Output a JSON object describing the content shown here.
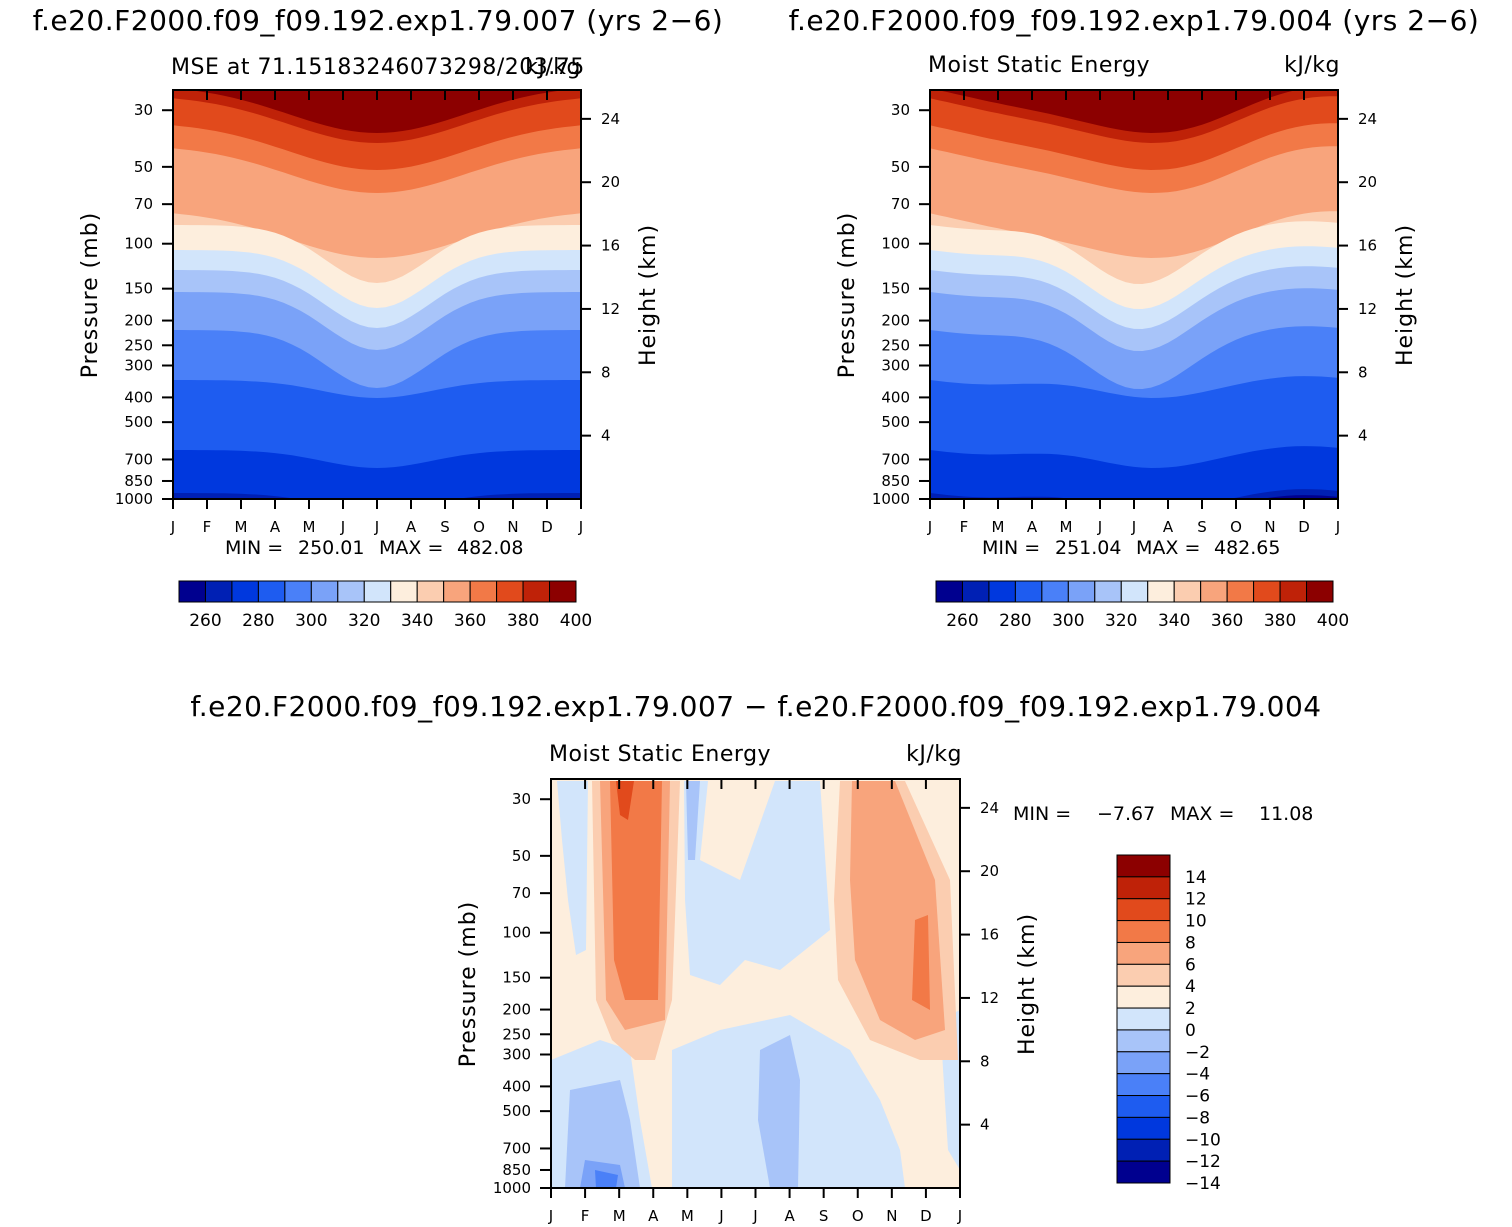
{
  "chart_data": [
    {
      "type": "heatmap",
      "case_title": "f.e20.F2000.f09_f09.192.exp1.79.007 (yrs 2−6)",
      "variable_title": "MSE at 71.15183246073298/203.75",
      "units": "kJ/kg",
      "ylabel": "Pressure (mb)",
      "ylabel_right": "Height (km)",
      "xlabel": "",
      "x_tick_labels": [
        "J",
        "F",
        "M",
        "A",
        "M",
        "J",
        "J",
        "A",
        "S",
        "O",
        "N",
        "D",
        "J"
      ],
      "pressure_ticks": [
        30,
        50,
        70,
        100,
        150,
        200,
        250,
        300,
        400,
        500,
        700,
        850,
        1000
      ],
      "height_ticks": [
        24,
        20,
        16,
        12,
        8,
        4
      ],
      "ylim": [
        1000,
        25
      ],
      "min_label": "MIN =",
      "min": "250.01",
      "max_label": "MAX =",
      "max": "482.08",
      "colorbar": {
        "labels": [
          "260",
          "280",
          "300",
          "320",
          "340",
          "360",
          "380",
          "400"
        ],
        "colors": [
          "#00008f",
          "#0020b4",
          "#0038de",
          "#1e5cf0",
          "#4a80f8",
          "#7aa2f8",
          "#a8c4f9",
          "#d2e5fb",
          "#fdeedd",
          "#fbcdb0",
          "#f8a47c",
          "#f27947",
          "#e14a1c",
          "#bf2208",
          "#8c0000"
        ]
      }
    },
    {
      "type": "heatmap",
      "case_title": "f.e20.F2000.f09_f09.192.exp1.79.004 (yrs 2−6)",
      "variable_title": "Moist Static Energy",
      "units": "kJ/kg",
      "ylabel": "Pressure (mb)",
      "ylabel_right": "Height (km)",
      "xlabel": "",
      "x_tick_labels": [
        "J",
        "F",
        "M",
        "A",
        "M",
        "J",
        "J",
        "A",
        "S",
        "O",
        "N",
        "D",
        "J"
      ],
      "pressure_ticks": [
        30,
        50,
        70,
        100,
        150,
        200,
        250,
        300,
        400,
        500,
        700,
        850,
        1000
      ],
      "height_ticks": [
        24,
        20,
        16,
        12,
        8,
        4
      ],
      "ylim": [
        1000,
        25
      ],
      "min_label": "MIN =",
      "min": "251.04",
      "max_label": "MAX =",
      "max": "482.65",
      "colorbar": {
        "labels": [
          "260",
          "280",
          "300",
          "320",
          "340",
          "360",
          "380",
          "400"
        ],
        "colors": [
          "#00008f",
          "#0020b4",
          "#0038de",
          "#1e5cf0",
          "#4a80f8",
          "#7aa2f8",
          "#a8c4f9",
          "#d2e5fb",
          "#fdeedd",
          "#fbcdb0",
          "#f8a47c",
          "#f27947",
          "#e14a1c",
          "#bf2208",
          "#8c0000"
        ]
      }
    },
    {
      "type": "heatmap",
      "case_title": "f.e20.F2000.f09_f09.192.exp1.79.007 − f.e20.F2000.f09_f09.192.exp1.79.004",
      "variable_title": "Moist Static Energy",
      "units": "kJ/kg",
      "ylabel": "Pressure (mb)",
      "ylabel_right": "Height (km)",
      "xlabel": "",
      "x_tick_labels": [
        "J",
        "F",
        "M",
        "A",
        "M",
        "J",
        "J",
        "A",
        "S",
        "O",
        "N",
        "D",
        "J"
      ],
      "pressure_ticks": [
        30,
        50,
        70,
        100,
        150,
        200,
        250,
        300,
        400,
        500,
        700,
        850,
        1000
      ],
      "height_ticks": [
        24,
        20,
        16,
        12,
        8,
        4
      ],
      "ylim": [
        1000,
        25
      ],
      "min_label": "MIN =",
      "min": "−7.67",
      "max_label": "MAX =",
      "max": "11.08",
      "colorbar": {
        "labels": [
          "14",
          "12",
          "10",
          "8",
          "6",
          "4",
          "2",
          "0",
          "−2",
          "−4",
          "−6",
          "−8",
          "−10",
          "−12",
          "−14"
        ],
        "colors": [
          "#8c0000",
          "#bf2208",
          "#e14a1c",
          "#f27947",
          "#f8a47c",
          "#fbcdb0",
          "#fdeedd",
          "#d2e5fb",
          "#a8c4f9",
          "#7aa2f8",
          "#4a80f8",
          "#1e5cf0",
          "#0038de",
          "#0020b4",
          "#00008f"
        ]
      }
    }
  ]
}
